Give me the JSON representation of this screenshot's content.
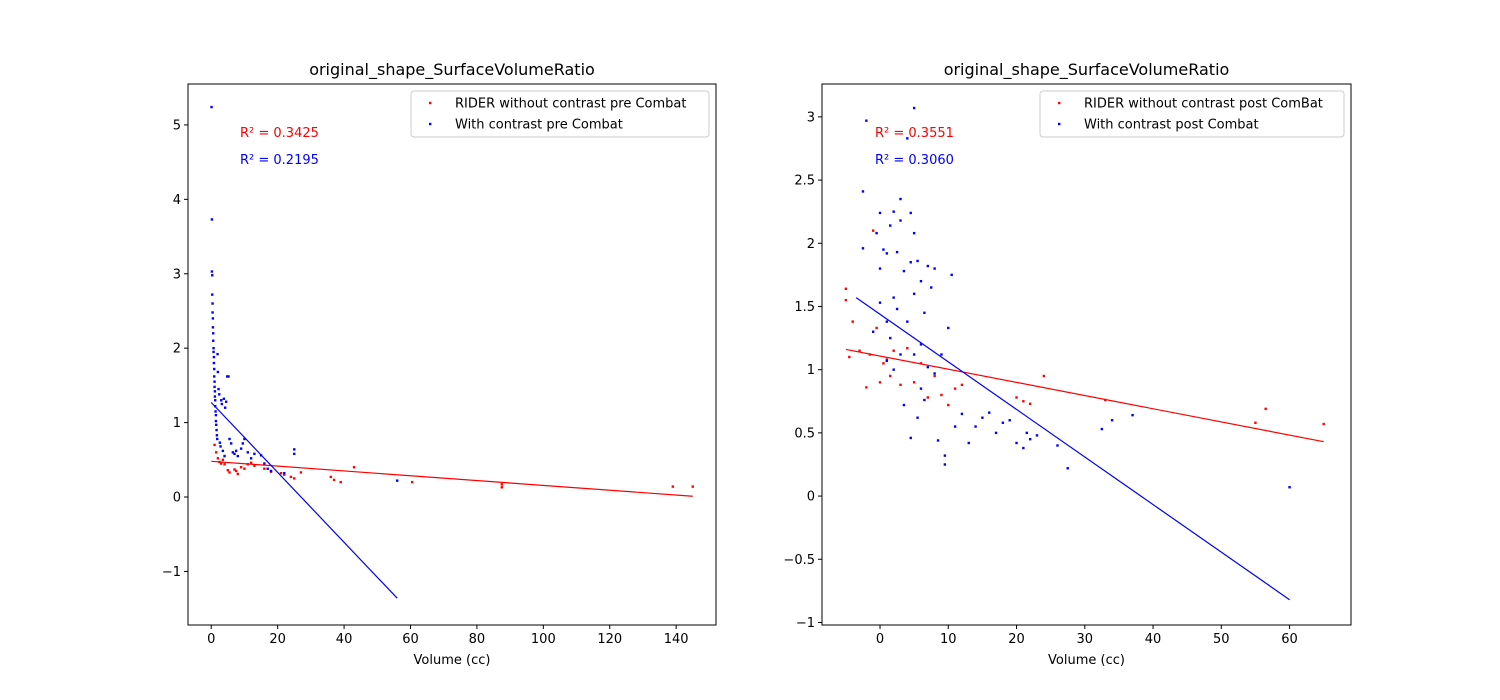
{
  "chart_data": [
    {
      "type": "scatter",
      "title": "original_shape_SurfaceVolumeRatio",
      "xlabel": "Volume (cc)",
      "ylabel": "",
      "xlim": [
        -7,
        152
      ],
      "ylim": [
        -1.72,
        5.55
      ],
      "xticks": [
        0,
        20,
        40,
        60,
        80,
        100,
        120,
        140
      ],
      "yticks": [
        -1,
        0,
        1,
        2,
        3,
        4,
        5
      ],
      "grid": false,
      "legend_position": "top-right",
      "series": [
        {
          "name": "RIDER without contrast pre Combat",
          "color": "#ff0000",
          "points": [
            [
              1,
              0.7
            ],
            [
              1.5,
              0.6
            ],
            [
              2,
              0.52
            ],
            [
              2.5,
              0.47
            ],
            [
              3,
              0.45
            ],
            [
              3.5,
              0.5
            ],
            [
              4,
              0.44
            ],
            [
              5,
              0.36
            ],
            [
              5.5,
              0.33
            ],
            [
              7,
              0.37
            ],
            [
              7.5,
              0.35
            ],
            [
              8,
              0.31
            ],
            [
              9,
              0.4
            ],
            [
              10,
              0.38
            ],
            [
              11,
              0.44
            ],
            [
              12,
              0.46
            ],
            [
              13,
              0.42
            ],
            [
              16,
              0.38
            ],
            [
              18,
              0.34
            ],
            [
              21,
              0.32
            ],
            [
              22,
              0.3
            ],
            [
              24,
              0.27
            ],
            [
              25,
              0.25
            ],
            [
              27,
              0.33
            ],
            [
              36,
              0.27
            ],
            [
              37,
              0.23
            ],
            [
              39,
              0.2
            ],
            [
              43,
              0.4
            ],
            [
              60.5,
              0.2
            ],
            [
              87.5,
              0.17
            ],
            [
              87.5,
              0.13
            ],
            [
              139,
              0.14
            ],
            [
              145,
              0.14
            ]
          ],
          "fit_line": [
            [
              0,
              0.48
            ],
            [
              145,
              0.01
            ]
          ],
          "r2_label": "R² = 0.3425"
        },
        {
          "name": "With contrast pre Combat",
          "color": "#0000ff",
          "points": [
            [
              0.1,
              5.24
            ],
            [
              0.2,
              3.73
            ],
            [
              0.2,
              3.03
            ],
            [
              0.3,
              2.98
            ],
            [
              0.3,
              2.72
            ],
            [
              0.4,
              2.6
            ],
            [
              0.4,
              2.48
            ],
            [
              0.5,
              2.4
            ],
            [
              0.5,
              2.28
            ],
            [
              0.6,
              2.2
            ],
            [
              0.6,
              2.1
            ],
            [
              0.7,
              2.0
            ],
            [
              0.7,
              1.95
            ],
            [
              0.8,
              1.88
            ],
            [
              0.8,
              1.8
            ],
            [
              0.9,
              1.72
            ],
            [
              0.9,
              1.62
            ],
            [
              1.0,
              1.55
            ],
            [
              1.0,
              1.48
            ],
            [
              1.1,
              1.42
            ],
            [
              1.1,
              1.35
            ],
            [
              1.2,
              1.3
            ],
            [
              1.2,
              1.22
            ],
            [
              1.3,
              1.15
            ],
            [
              1.4,
              1.1
            ],
            [
              1.4,
              1.02
            ],
            [
              1.5,
              0.97
            ],
            [
              1.6,
              0.9
            ],
            [
              1.7,
              0.83
            ],
            [
              1.8,
              0.78
            ],
            [
              1.9,
              1.92
            ],
            [
              2.0,
              1.68
            ],
            [
              2.2,
              1.45
            ],
            [
              2.4,
              1.38
            ],
            [
              2.6,
              0.73
            ],
            [
              2.8,
              0.68
            ],
            [
              3.0,
              1.3
            ],
            [
              3.2,
              1.25
            ],
            [
              3.5,
              0.62
            ],
            [
              3.8,
              1.32
            ],
            [
              4.0,
              0.55
            ],
            [
              4.2,
              1.2
            ],
            [
              4.5,
              1.28
            ],
            [
              4.8,
              1.62
            ],
            [
              5.2,
              1.62
            ],
            [
              5.5,
              0.78
            ],
            [
              6,
              0.72
            ],
            [
              6.5,
              0.6
            ],
            [
              7,
              0.58
            ],
            [
              7.5,
              0.62
            ],
            [
              8,
              0.55
            ],
            [
              9,
              0.65
            ],
            [
              9.5,
              0.72
            ],
            [
              10,
              0.78
            ],
            [
              11,
              0.6
            ],
            [
              12,
              0.52
            ],
            [
              13,
              0.58
            ],
            [
              15,
              0.56
            ],
            [
              16,
              0.45
            ],
            [
              17,
              0.38
            ],
            [
              18,
              0.35
            ],
            [
              22,
              0.32
            ],
            [
              25,
              0.64
            ],
            [
              25,
              0.58
            ],
            [
              56,
              0.22
            ]
          ],
          "fit_line": [
            [
              0,
              1.27
            ],
            [
              56,
              -1.36
            ]
          ],
          "r2_label": "R² = 0.2195"
        }
      ]
    },
    {
      "type": "scatter",
      "title": "original_shape_SurfaceVolumeRatio",
      "xlabel": "Volume (cc)",
      "ylabel": "",
      "xlim": [
        -8.5,
        69
      ],
      "ylim": [
        -1.02,
        3.26
      ],
      "xticks": [
        0,
        10,
        20,
        30,
        40,
        50,
        60
      ],
      "yticks": [
        -1.0,
        -0.5,
        0.0,
        0.5,
        1.0,
        1.5,
        2.0,
        2.5,
        3.0
      ],
      "grid": false,
      "legend_position": "top-right",
      "series": [
        {
          "name": "RIDER without contrast post ComBat",
          "color": "#ff0000",
          "points": [
            [
              -5,
              1.64
            ],
            [
              -5,
              1.55
            ],
            [
              -4.5,
              1.1
            ],
            [
              -4,
              1.38
            ],
            [
              -3,
              1.15
            ],
            [
              -2,
              0.86
            ],
            [
              -1.5,
              1.12
            ],
            [
              -1,
              2.1
            ],
            [
              -0.5,
              1.33
            ],
            [
              0,
              0.9
            ],
            [
              0.5,
              1.05
            ],
            [
              1,
              1.08
            ],
            [
              1.5,
              0.95
            ],
            [
              2,
              1.15
            ],
            [
              3,
              0.88
            ],
            [
              4,
              1.17
            ],
            [
              5,
              0.9
            ],
            [
              6,
              1.05
            ],
            [
              7,
              0.78
            ],
            [
              8,
              0.95
            ],
            [
              9,
              0.8
            ],
            [
              10,
              0.72
            ],
            [
              11,
              0.85
            ],
            [
              12,
              0.88
            ],
            [
              20,
              0.78
            ],
            [
              21,
              0.75
            ],
            [
              22,
              0.73
            ],
            [
              24,
              0.95
            ],
            [
              33,
              0.76
            ],
            [
              55,
              0.58
            ],
            [
              56.5,
              0.69
            ],
            [
              65,
              0.57
            ]
          ],
          "fit_line": [
            [
              -5,
              1.16
            ],
            [
              65,
              0.43
            ]
          ],
          "r2_label": "R² = 0.3551"
        },
        {
          "name": "With contrast post Combat",
          "color": "#0000ff",
          "points": [
            [
              -2,
              2.97
            ],
            [
              5,
              3.07
            ],
            [
              -2.5,
              2.41
            ],
            [
              -2.5,
              1.96
            ],
            [
              -1,
              1.3
            ],
            [
              -0.5,
              2.08
            ],
            [
              0,
              2.24
            ],
            [
              0,
              1.8
            ],
            [
              0,
              1.53
            ],
            [
              0.5,
              1.95
            ],
            [
              1,
              1.92
            ],
            [
              1,
              1.38
            ],
            [
              1,
              1.07
            ],
            [
              1.5,
              2.14
            ],
            [
              1.5,
              1.25
            ],
            [
              2,
              2.25
            ],
            [
              2,
              1.57
            ],
            [
              2,
              1.0
            ],
            [
              2.5,
              1.93
            ],
            [
              2.5,
              1.48
            ],
            [
              3,
              2.35
            ],
            [
              3,
              2.18
            ],
            [
              3,
              1.12
            ],
            [
              3.5,
              1.78
            ],
            [
              3.5,
              0.72
            ],
            [
              4,
              2.83
            ],
            [
              4,
              1.38
            ],
            [
              4.5,
              2.24
            ],
            [
              4.5,
              1.85
            ],
            [
              4.5,
              0.46
            ],
            [
              5,
              2.08
            ],
            [
              5,
              1.6
            ],
            [
              5,
              1.12
            ],
            [
              5.5,
              1.86
            ],
            [
              5.5,
              0.62
            ],
            [
              6,
              1.7
            ],
            [
              6,
              1.2
            ],
            [
              6,
              0.85
            ],
            [
              6.5,
              1.45
            ],
            [
              6.5,
              0.76
            ],
            [
              7,
              1.82
            ],
            [
              7,
              1.02
            ],
            [
              7.5,
              1.65
            ],
            [
              8,
              1.8
            ],
            [
              8,
              0.97
            ],
            [
              8.5,
              0.44
            ],
            [
              9,
              1.12
            ],
            [
              9.5,
              0.25
            ],
            [
              9.5,
              0.32
            ],
            [
              10,
              1.33
            ],
            [
              10.5,
              1.75
            ],
            [
              11,
              0.55
            ],
            [
              12,
              0.65
            ],
            [
              13,
              0.42
            ],
            [
              14,
              0.55
            ],
            [
              15,
              0.62
            ],
            [
              16,
              0.66
            ],
            [
              17,
              0.5
            ],
            [
              18,
              0.58
            ],
            [
              19,
              0.6
            ],
            [
              20,
              0.42
            ],
            [
              21,
              0.38
            ],
            [
              21.5,
              0.5
            ],
            [
              22,
              0.45
            ],
            [
              23,
              0.48
            ],
            [
              26,
              0.4
            ],
            [
              27.5,
              0.22
            ],
            [
              32.5,
              0.53
            ],
            [
              34,
              0.6
            ],
            [
              37,
              0.64
            ],
            [
              60,
              0.07
            ]
          ],
          "fit_line": [
            [
              -3.5,
              1.57
            ],
            [
              60,
              -0.82
            ]
          ],
          "r2_label": "R² = 0.3060"
        }
      ]
    }
  ]
}
